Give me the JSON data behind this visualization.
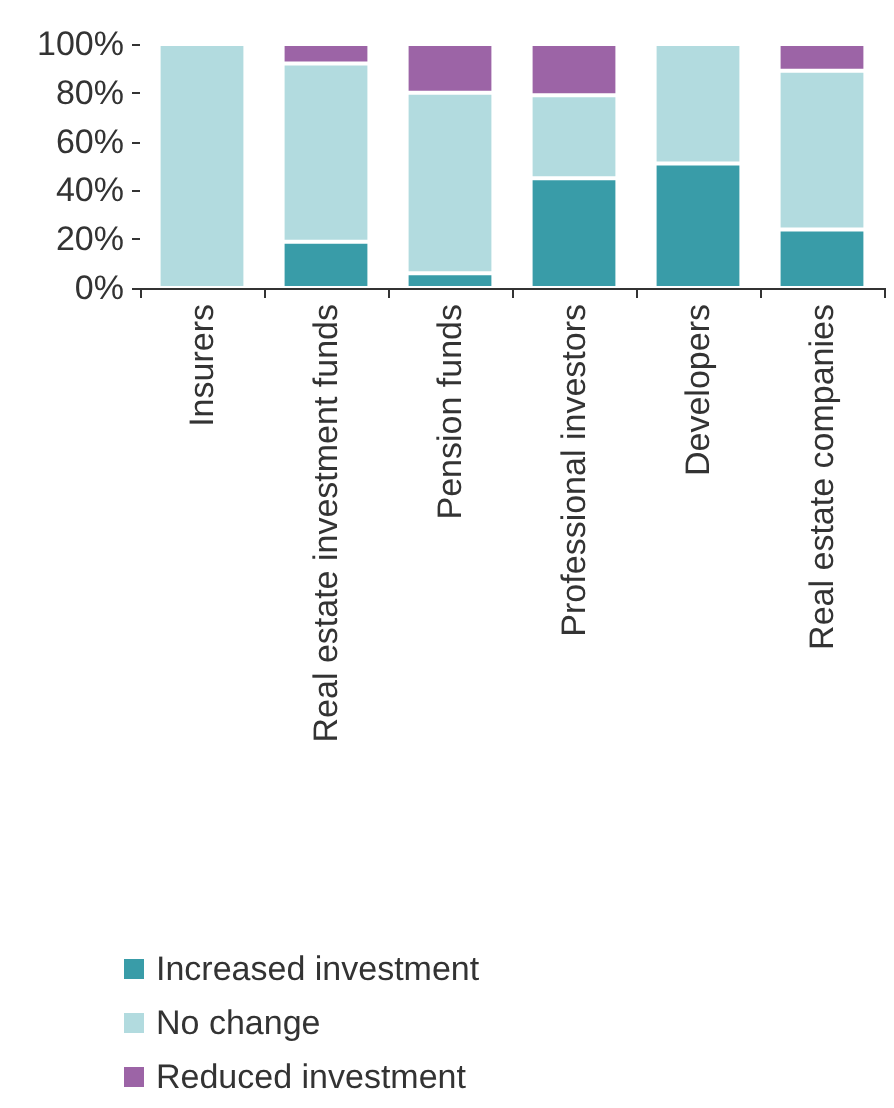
{
  "chart_data": {
    "type": "bar",
    "stacked": true,
    "categories": [
      "Insurers",
      "Real estate investment funds",
      "Pension funds",
      "Professional investors",
      "Developers",
      "Real estate companies"
    ],
    "series": [
      {
        "name": "Increased investment",
        "color": "#399ca8",
        "values": [
          0,
          19,
          6,
          45,
          51,
          24
        ]
      },
      {
        "name": "No change",
        "color": "#b2dbdf",
        "values": [
          100,
          73,
          74,
          34,
          49,
          65
        ]
      },
      {
        "name": "Reduced investment",
        "color": "#9c64a6",
        "values": [
          0,
          8,
          20,
          21,
          0,
          11
        ]
      }
    ],
    "ylim": [
      0,
      100
    ],
    "yticks": [
      {
        "value": 0,
        "label": "0%"
      },
      {
        "value": 20,
        "label": "20%"
      },
      {
        "value": 40,
        "label": "40%"
      },
      {
        "value": 60,
        "label": "60%"
      },
      {
        "value": 80,
        "label": "80%"
      },
      {
        "value": 100,
        "label": "100%"
      }
    ],
    "grid": false,
    "legend": "bottom"
  }
}
